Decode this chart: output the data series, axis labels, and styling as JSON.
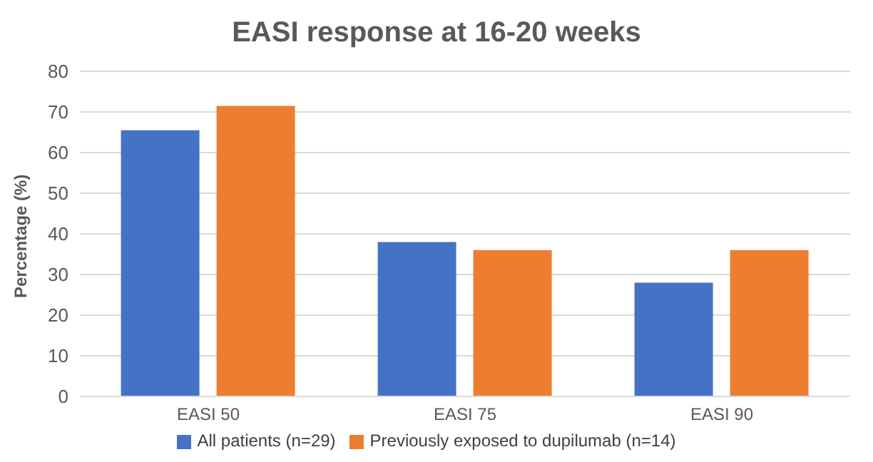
{
  "chart_data": {
    "type": "bar",
    "title": "EASI response at 16-20 weeks",
    "ylabel": "Percentage (%)",
    "categories": [
      "EASI 50",
      "EASI 75",
      "EASI 90"
    ],
    "series": [
      {
        "name": "All patients (n=29)",
        "color": "#4472c4",
        "values": [
          65.5,
          38,
          28
        ]
      },
      {
        "name": "Previously exposed to dupilumab (n=14)",
        "color": "#ed7d31",
        "values": [
          71.5,
          36,
          36
        ]
      }
    ],
    "ylim": [
      0,
      80
    ],
    "yticks": [
      0,
      10,
      20,
      30,
      40,
      50,
      60,
      70,
      80
    ],
    "grid": "y",
    "legend": "bottom"
  }
}
